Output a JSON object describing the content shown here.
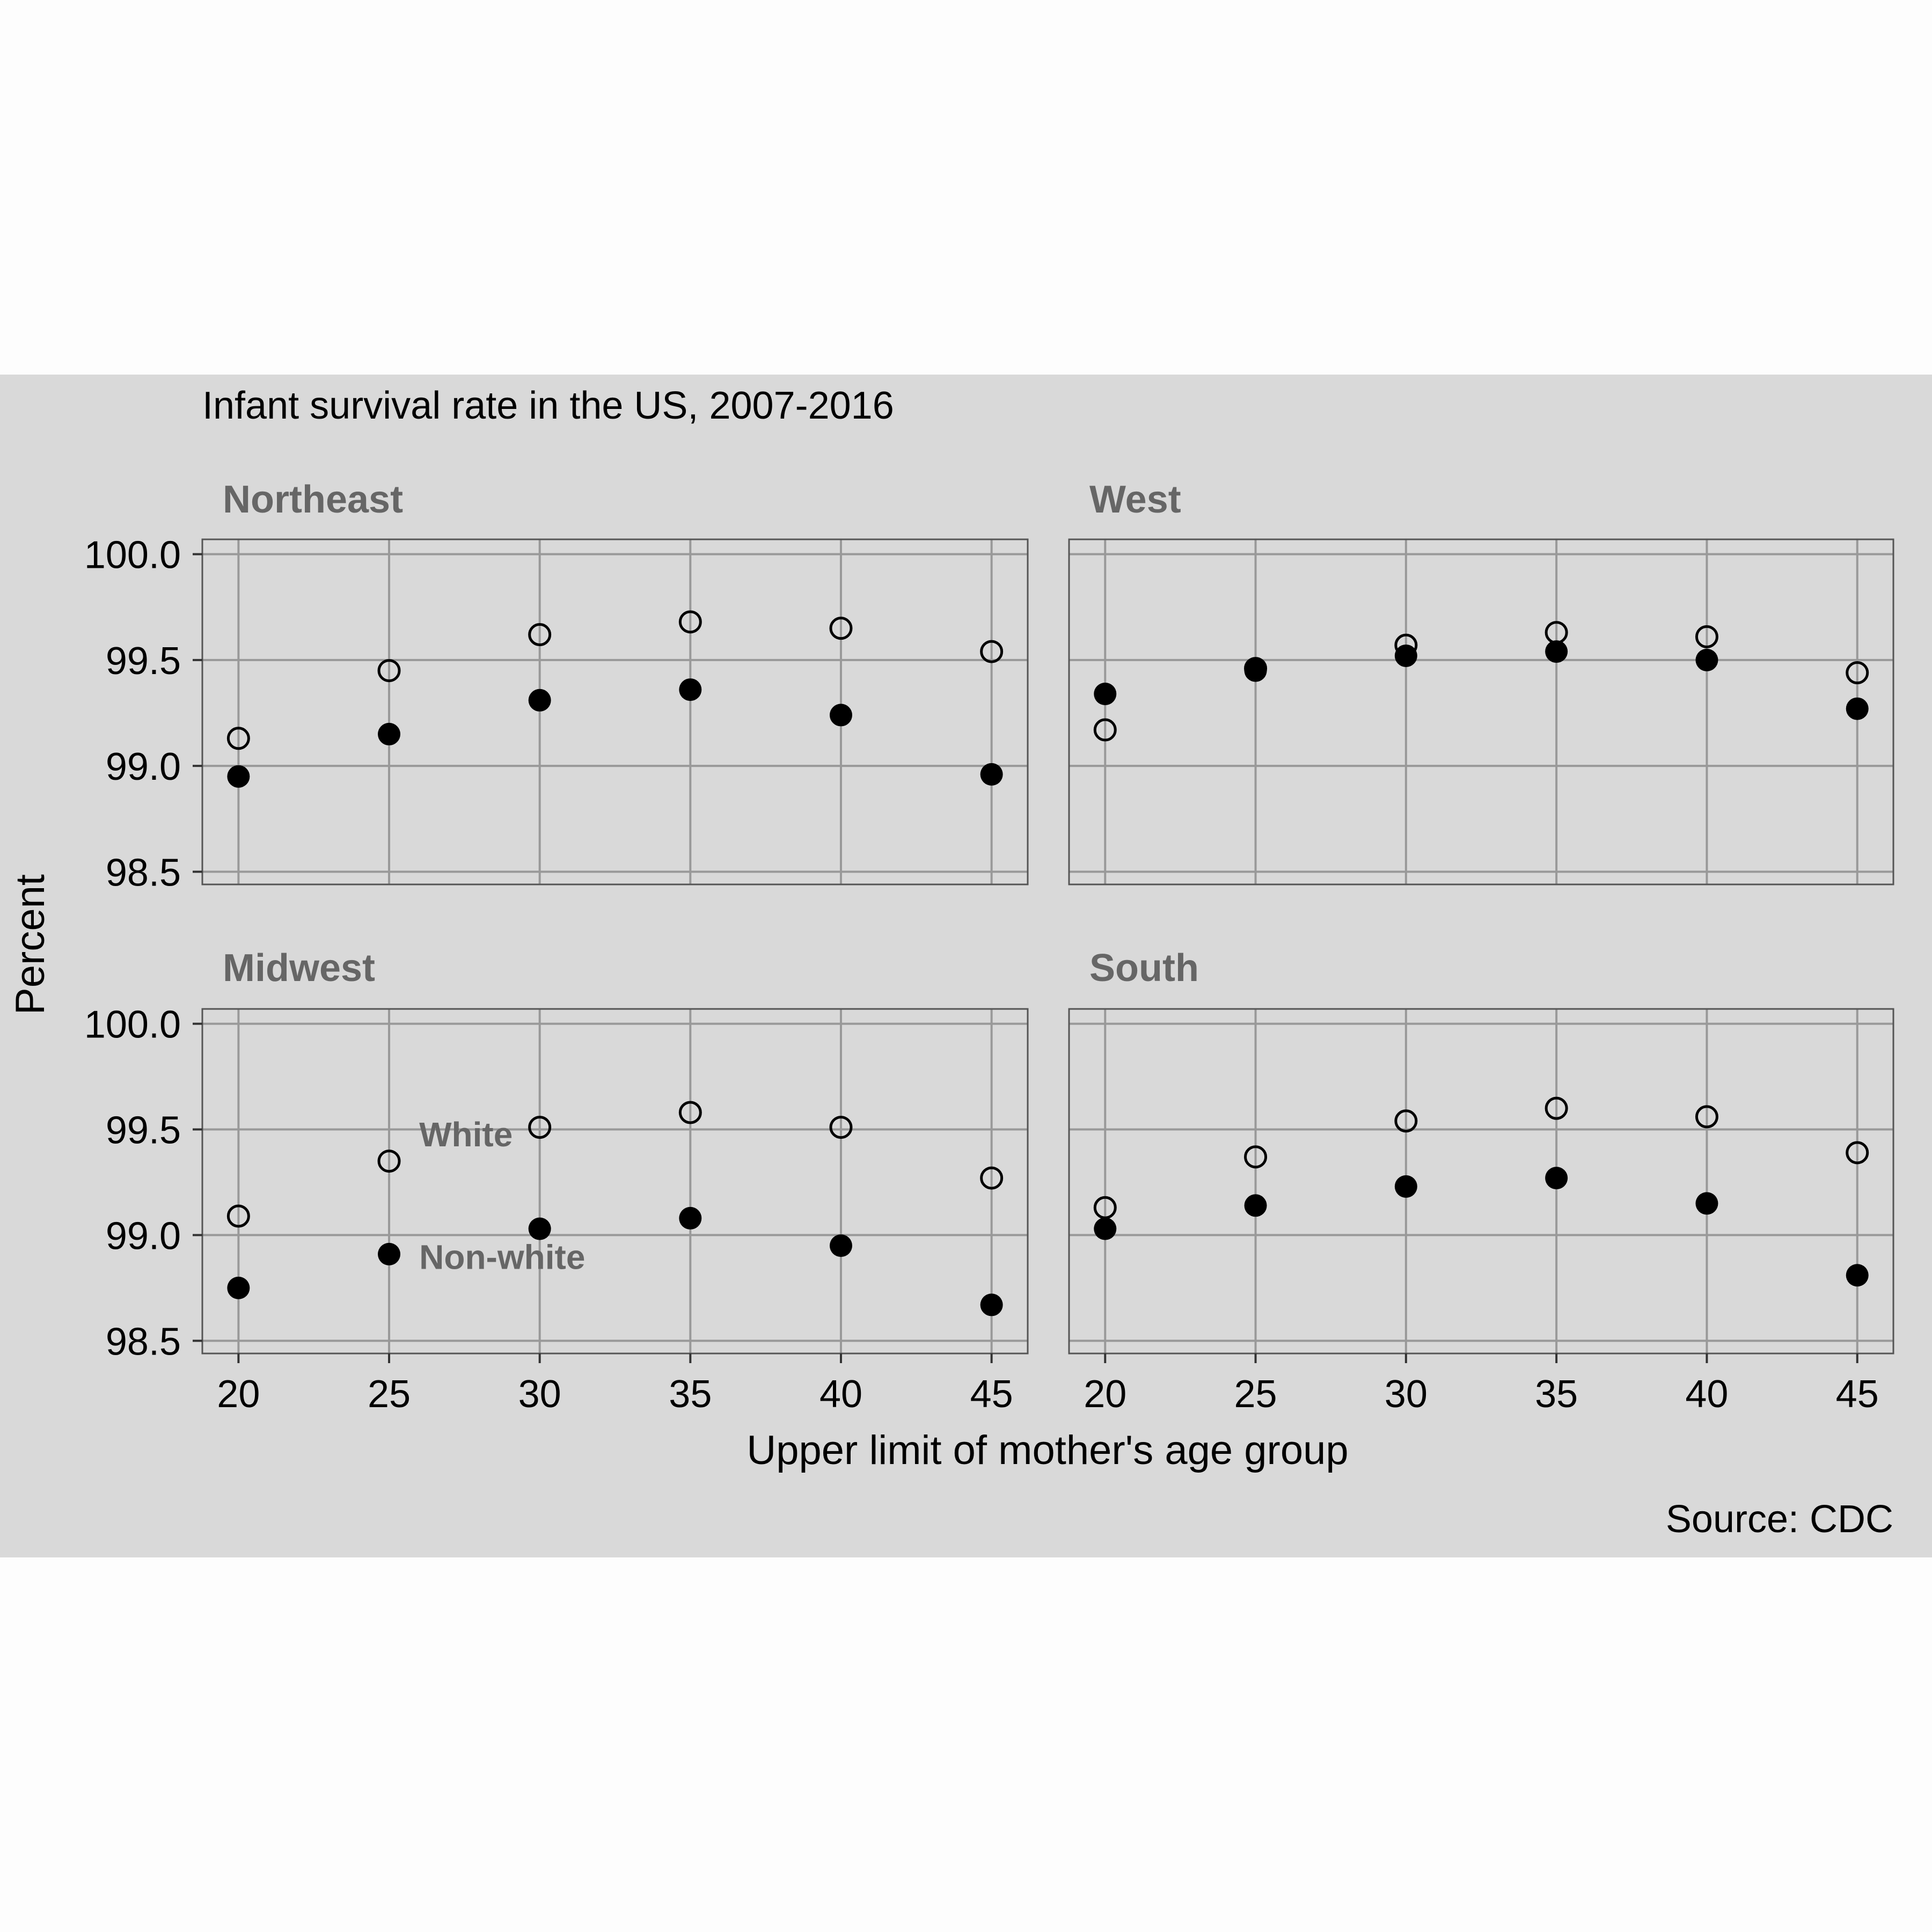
{
  "chart_data": {
    "type": "scatter",
    "title": "Infant survival rate in the US, 2007-2016",
    "xlabel": "Upper limit of mother's age group",
    "ylabel": "Percent",
    "caption": "Source: CDC",
    "x": [
      20,
      25,
      30,
      35,
      40,
      45
    ],
    "x_ticks": [
      "20",
      "25",
      "30",
      "35",
      "40",
      "45"
    ],
    "y_ticks": [
      "98.5",
      "99.0",
      "99.5",
      "100.0"
    ],
    "ylim": [
      98.44,
      100.07
    ],
    "xlim": [
      18.8,
      46.2
    ],
    "grid": true,
    "series_style": {
      "white": "open circle",
      "non_white": "filled circle"
    },
    "point_color": "#000000",
    "panel_background": "#d9d9d9",
    "grid_color": "#999999",
    "panels": [
      {
        "name": "Northeast",
        "white": [
          99.13,
          99.45,
          99.62,
          99.68,
          99.65,
          99.54
        ],
        "non_white": [
          98.95,
          99.15,
          99.31,
          99.36,
          99.24,
          98.96
        ]
      },
      {
        "name": "West",
        "white": [
          99.17,
          99.46,
          99.57,
          99.63,
          99.61,
          99.44
        ],
        "non_white": [
          99.34,
          99.45,
          99.52,
          99.54,
          99.5,
          99.27
        ]
      },
      {
        "name": "Midwest",
        "white": [
          99.09,
          99.35,
          99.51,
          99.58,
          99.51,
          99.27
        ],
        "non_white": [
          98.75,
          98.91,
          99.03,
          99.08,
          98.95,
          98.67
        ],
        "annotations": [
          {
            "text": "White",
            "x": 26,
            "y": 99.42
          },
          {
            "text": "Non-white",
            "x": 26,
            "y": 98.84
          }
        ]
      },
      {
        "name": "South",
        "white": [
          99.13,
          99.37,
          99.54,
          99.6,
          99.56,
          99.39
        ],
        "non_white": [
          99.03,
          99.14,
          99.23,
          99.27,
          99.15,
          98.81
        ]
      }
    ]
  }
}
